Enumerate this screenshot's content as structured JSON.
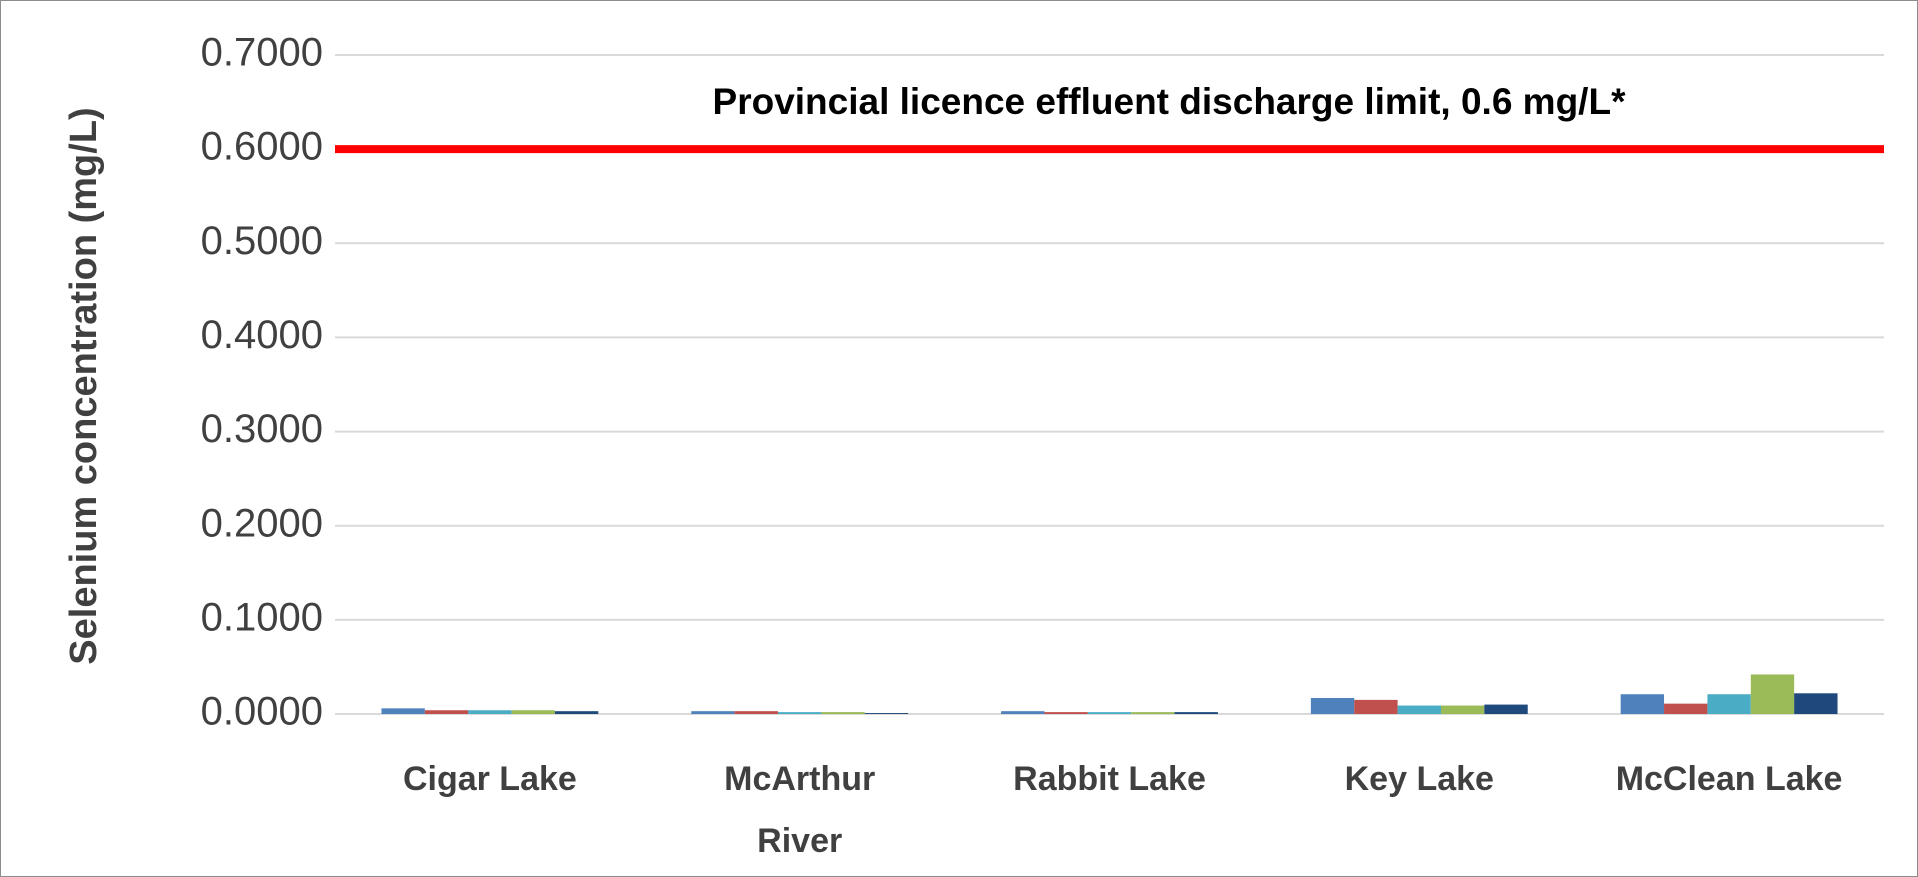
{
  "chart_data": {
    "type": "bar",
    "y_label": "Selenium concentration (mg/L)",
    "categories": [
      "Cigar Lake",
      "McArthur River",
      "Rabbit Lake",
      "Key Lake",
      "McClean Lake"
    ],
    "series": [
      {
        "color": "#4f81bd",
        "values": [
          0.006,
          0.003,
          0.003,
          0.017,
          0.021
        ]
      },
      {
        "color": "#c0504d",
        "values": [
          0.004,
          0.003,
          0.002,
          0.015,
          0.011
        ]
      },
      {
        "color": "#4bacc6",
        "values": [
          0.004,
          0.002,
          0.002,
          0.009,
          0.021
        ]
      },
      {
        "color": "#9bbb59",
        "values": [
          0.004,
          0.002,
          0.002,
          0.009,
          0.042
        ]
      },
      {
        "color": "#1f497d",
        "values": [
          0.003,
          0.001,
          0.002,
          0.01,
          0.022
        ]
      }
    ],
    "ylim": [
      0,
      0.7
    ],
    "yticks": [
      {
        "value": 0,
        "label": "0.0000"
      },
      {
        "value": 0.1,
        "label": "0.1000"
      },
      {
        "value": 0.2,
        "label": "0.2000"
      },
      {
        "value": 0.3,
        "label": "0.3000"
      },
      {
        "value": 0.4,
        "label": "0.4000"
      },
      {
        "value": 0.5,
        "label": "0.5000"
      },
      {
        "value": 0.6,
        "label": "0.6000"
      },
      {
        "value": 0.7,
        "label": "0.7000"
      }
    ],
    "grid": true,
    "reference_line": {
      "value": 0.6,
      "label": "Provincial licence effluent discharge limit, 0.6 mg/L*",
      "color": "#ff0000"
    }
  }
}
